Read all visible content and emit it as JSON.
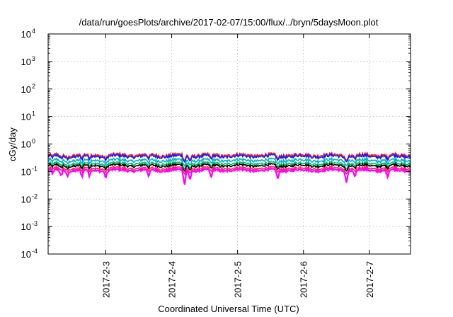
{
  "chart_data": {
    "type": "line",
    "title": "/data/run/goesPlots/archive/2017-02-07/15:00/flux/../bryn/5daysMoon.plot",
    "xlabel": "Coordinated Universal Time (UTC)",
    "ylabel": "cGy/day",
    "y_scale": "log",
    "ylim": [
      0.0001,
      10000
    ],
    "y_ticks": [
      {
        "base": "10",
        "exp": "4"
      },
      {
        "base": "10",
        "exp": "3"
      },
      {
        "base": "10",
        "exp": "2"
      },
      {
        "base": "10",
        "exp": "1"
      },
      {
        "base": "10",
        "exp": "0"
      },
      {
        "base": "10",
        "exp": "-1"
      },
      {
        "base": "10",
        "exp": "-2"
      },
      {
        "base": "10",
        "exp": "-3"
      },
      {
        "base": "10",
        "exp": "-4"
      }
    ],
    "xlim": [
      "2017-02-02 03:00",
      "2017-02-07 15:00"
    ],
    "x_ticks": [
      "2017-2-3",
      "2017-2-4",
      "2017-2-5",
      "2017-2-6",
      "2017-2-7"
    ],
    "grid": true,
    "series": [
      {
        "color": "#ff2020",
        "level": 0.4,
        "dip_factor": 0.75
      },
      {
        "color": "#1a1aff",
        "level": 0.36,
        "dip_factor": 0.7
      },
      {
        "color": "#00b4c8",
        "level": 0.26,
        "dip_factor": 0.68
      },
      {
        "color": "#00c060",
        "level": 0.2,
        "dip_factor": 0.65
      },
      {
        "color": "#000000",
        "level": 0.17,
        "dip_factor": 0.62
      },
      {
        "color": "#ff2060",
        "level": 0.135,
        "dip_factor": 0.6
      },
      {
        "color": "#ff00ff",
        "level": 0.115,
        "dip_factor": 0.45
      }
    ],
    "dips": [
      {
        "t": "2017-02-02 04:40",
        "factor": 0.7
      },
      {
        "t": "2017-02-02 07:40",
        "factor": 0.55
      },
      {
        "t": "2017-02-02 10:00",
        "factor": 0.6
      },
      {
        "t": "2017-02-02 15:20",
        "factor": 0.55
      },
      {
        "t": "2017-02-02 18:00",
        "factor": 0.6
      },
      {
        "t": "2017-02-03 00:00",
        "factor": 0.55
      },
      {
        "t": "2017-02-03 15:40",
        "factor": 0.55
      },
      {
        "t": "2017-02-04 04:40",
        "factor": 0.22
      },
      {
        "t": "2017-02-04 06:40",
        "factor": 0.45
      },
      {
        "t": "2017-02-04 14:20",
        "factor": 0.5
      },
      {
        "t": "2017-02-05 14:40",
        "factor": 0.45
      },
      {
        "t": "2017-02-06 15:40",
        "factor": 0.35
      },
      {
        "t": "2017-02-06 18:40",
        "factor": 0.55
      },
      {
        "t": "2017-02-07 06:40",
        "factor": 0.55
      }
    ]
  }
}
